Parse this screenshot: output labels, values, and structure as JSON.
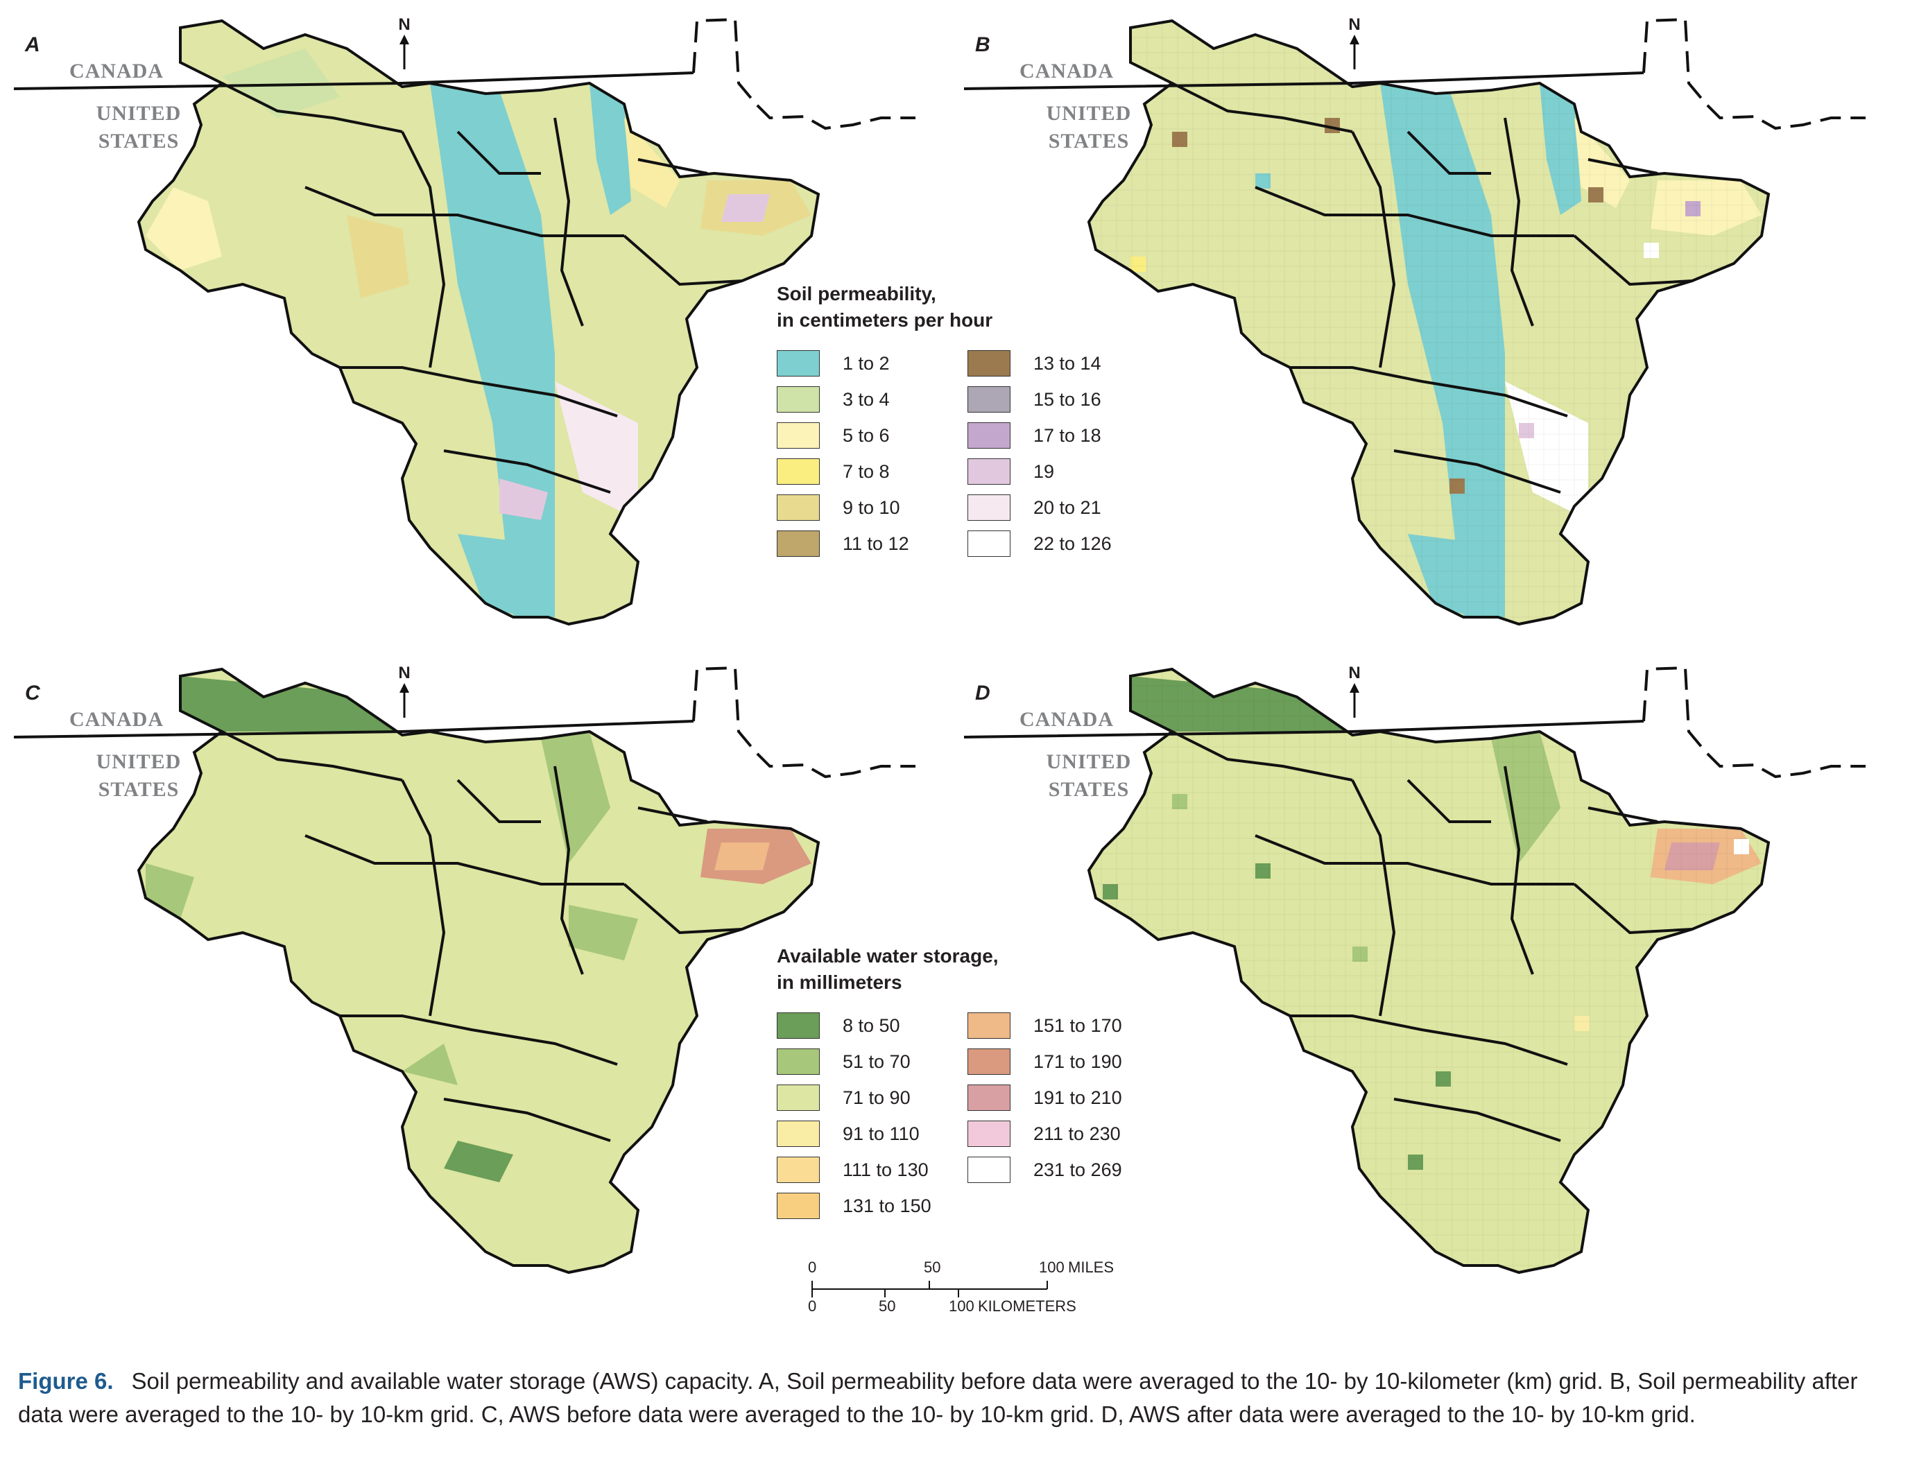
{
  "panels": [
    {
      "id": "a",
      "letter": "A",
      "variant": "perm-raw"
    },
    {
      "id": "b",
      "letter": "B",
      "variant": "perm-grid"
    },
    {
      "id": "c",
      "letter": "C",
      "variant": "aws-raw"
    },
    {
      "id": "d",
      "letter": "D",
      "variant": "aws-grid"
    }
  ],
  "labels": {
    "canada": "CANADA",
    "us_line1": "UNITED",
    "us_line2": "STATES",
    "north": "N"
  },
  "legend_permeability": {
    "title_line1": "Soil permeability,",
    "title_line2": "in centimeters per hour",
    "items": [
      {
        "label": "1 to 2",
        "color": "#7ecfcf"
      },
      {
        "label": "3 to 4",
        "color": "#cfe3a8"
      },
      {
        "label": "5 to 6",
        "color": "#fbf3b8"
      },
      {
        "label": "7 to 8",
        "color": "#fbee80"
      },
      {
        "label": "9 to 10",
        "color": "#e8db90"
      },
      {
        "label": "11 to 12",
        "color": "#bfa66a"
      },
      {
        "label": "13 to 14",
        "color": "#9c7a50"
      },
      {
        "label": "15 to 16",
        "color": "#ada6b5"
      },
      {
        "label": "17 to 18",
        "color": "#c4a7cc"
      },
      {
        "label": "19",
        "color": "#e2c8df"
      },
      {
        "label": "20 to 21",
        "color": "#f6e9f0"
      },
      {
        "label": "22 to 126",
        "color": "#ffffff"
      }
    ]
  },
  "legend_aws": {
    "title_line1": "Available water storage,",
    "title_line2": "in millimeters",
    "items": [
      {
        "label": "8 to 50",
        "color": "#6b9e58"
      },
      {
        "label": "51 to 70",
        "color": "#a7c77a"
      },
      {
        "label": "71 to 90",
        "color": "#dde6a2"
      },
      {
        "label": "91 to 110",
        "color": "#f9eca4"
      },
      {
        "label": "111 to 130",
        "color": "#fadc94"
      },
      {
        "label": "131 to 150",
        "color": "#f8cf80"
      },
      {
        "label": "151 to 170",
        "color": "#efb988"
      },
      {
        "label": "171 to 190",
        "color": "#d99a80"
      },
      {
        "label": "191 to 210",
        "color": "#d9a0a3"
      },
      {
        "label": "211 to 230",
        "color": "#f2c9da"
      },
      {
        "label": "231 to 269",
        "color": "#ffffff"
      }
    ]
  },
  "scale": {
    "miles_ticks": [
      "0",
      "50",
      "100"
    ],
    "miles_unit": "MILES",
    "km_ticks": [
      "0",
      "50",
      "100"
    ],
    "km_unit": "KILOMETERS"
  },
  "caption": {
    "figure_number": "Figure 6.",
    "text": "Soil permeability and available water storage (AWS) capacity. A, Soil permeability before data were averaged to the 10- by 10-kilometer (km) grid. B, Soil permeability after data were averaged to the 10- by 10-km grid. C, AWS before data were averaged to the 10- by 10-km grid. D, AWS after data were averaged to the 10- by 10-km grid."
  }
}
